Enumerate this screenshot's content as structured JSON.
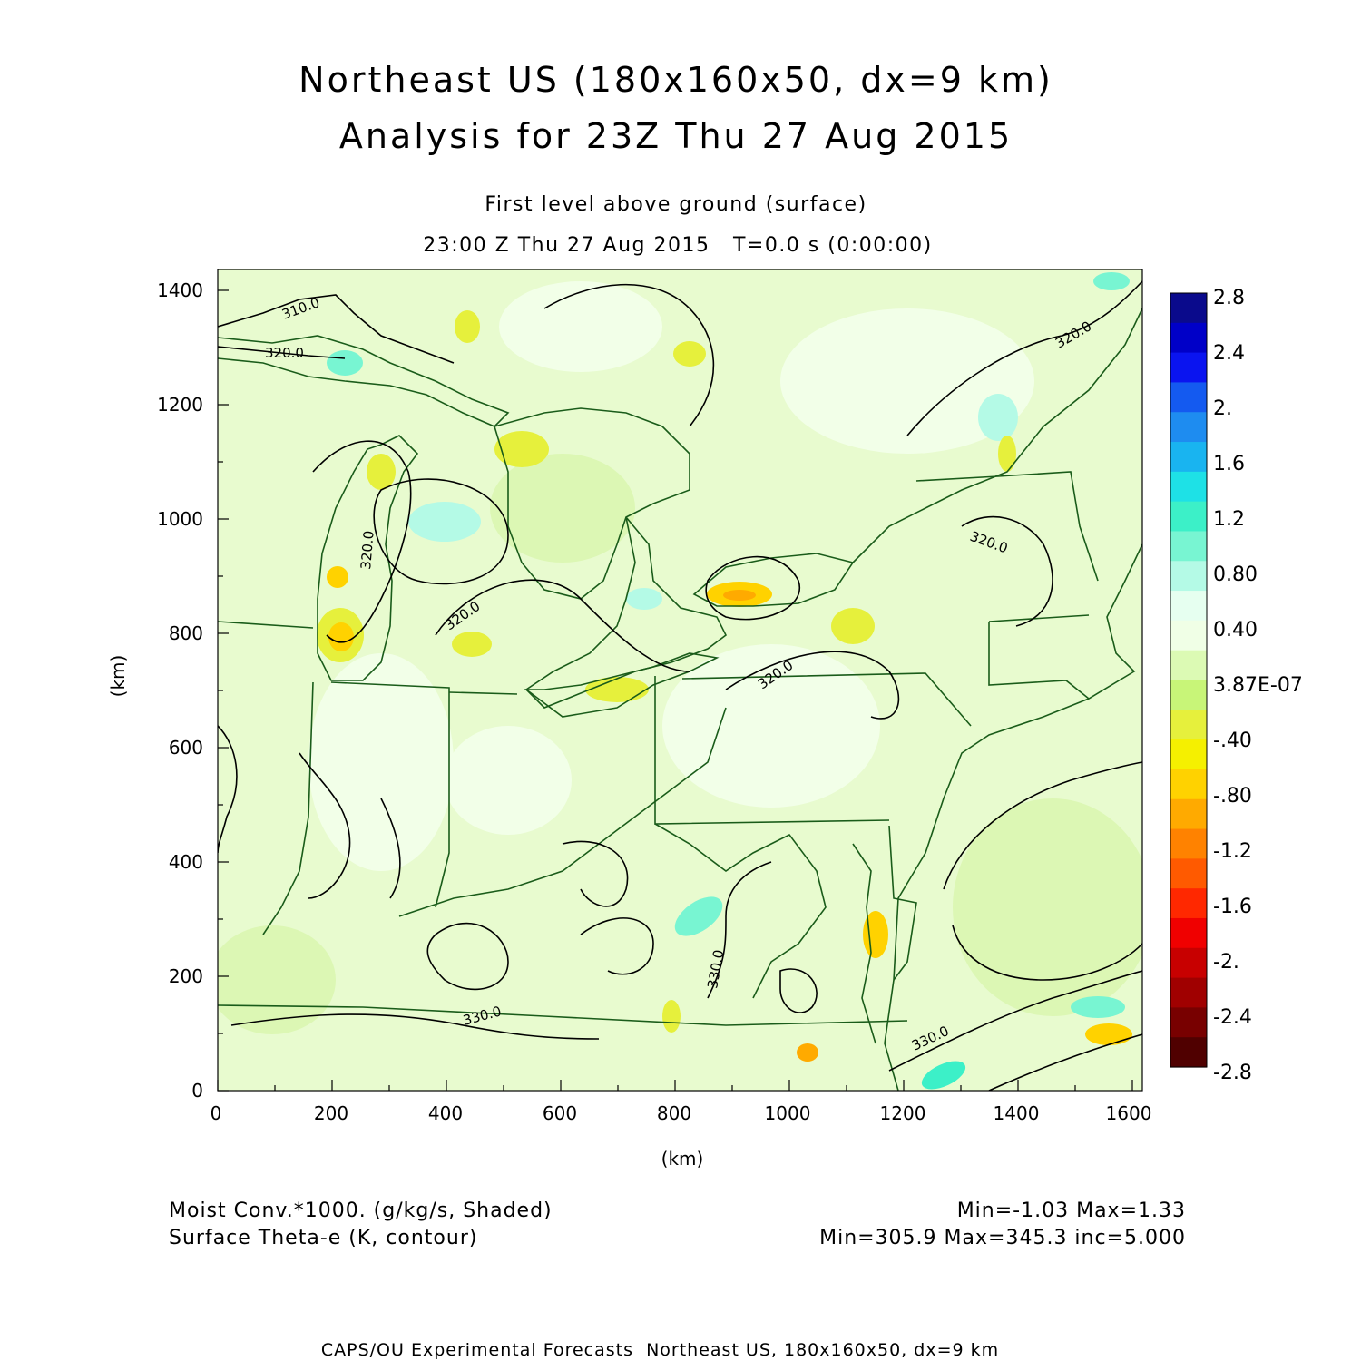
{
  "title": {
    "line1": "Northeast US (180x160x50, dx=9 km)",
    "line2": "Analysis for 23Z Thu 27 Aug 2015"
  },
  "subtitle": {
    "line1": "First level above ground (surface)",
    "line2": "23:00 Z Thu 27 Aug 2015   T=0.0 s (0:00:00)"
  },
  "axes": {
    "xlabel": "(km)",
    "ylabel": "(km)",
    "x_ticks": [
      "0",
      "200",
      "400",
      "600",
      "800",
      "1000",
      "1200",
      "1400",
      "1600"
    ],
    "y_ticks": [
      "0",
      "200",
      "400",
      "600",
      "800",
      "1000",
      "1200",
      "1400"
    ]
  },
  "colorbar": {
    "labels": [
      "2.8",
      "2.4",
      "2.",
      "1.6",
      "1.2",
      "0.80",
      "0.40",
      "3.87E-07",
      "-.40",
      "-.80",
      "-1.2",
      "-1.6",
      "-2.",
      "-2.4",
      "-2.8"
    ],
    "colors": [
      "#0a0a8c",
      "#0000c8",
      "#0a14f0",
      "#145af0",
      "#1e8cf0",
      "#19b4f0",
      "#1ee1e6",
      "#3cf0c8",
      "#78f5d2",
      "#b4fae6",
      "#e6fff0",
      "#f0ffe6",
      "#dcfab4",
      "#c8f578",
      "#e6f03c",
      "#f5f000",
      "#ffd200",
      "#ffaa00",
      "#ff8200",
      "#ff5a00",
      "#ff2800",
      "#f00000",
      "#c80000",
      "#a00000",
      "#780000",
      "#500000"
    ]
  },
  "contours": {
    "labels": [
      "310.0",
      "320.0",
      "320.0",
      "320.0",
      "320.0",
      "320.0",
      "320.0",
      "330.0",
      "330.0",
      "330.0"
    ]
  },
  "info": {
    "left1": "Moist Conv.*1000. (g/kg/s, Shaded)",
    "left2": "Surface Theta-e (K, contour)",
    "right1": "Min=-1.03 Max=1.33",
    "right2": "Min=305.9 Max=345.3 inc=5.000"
  },
  "footer": "CAPS/OU Experimental Forecasts  Northeast US, 180x160x50, dx=9 km",
  "colors": {
    "background_field": "#e8fbcf",
    "boundary": "#1a5c1a",
    "contour": "#000000"
  }
}
